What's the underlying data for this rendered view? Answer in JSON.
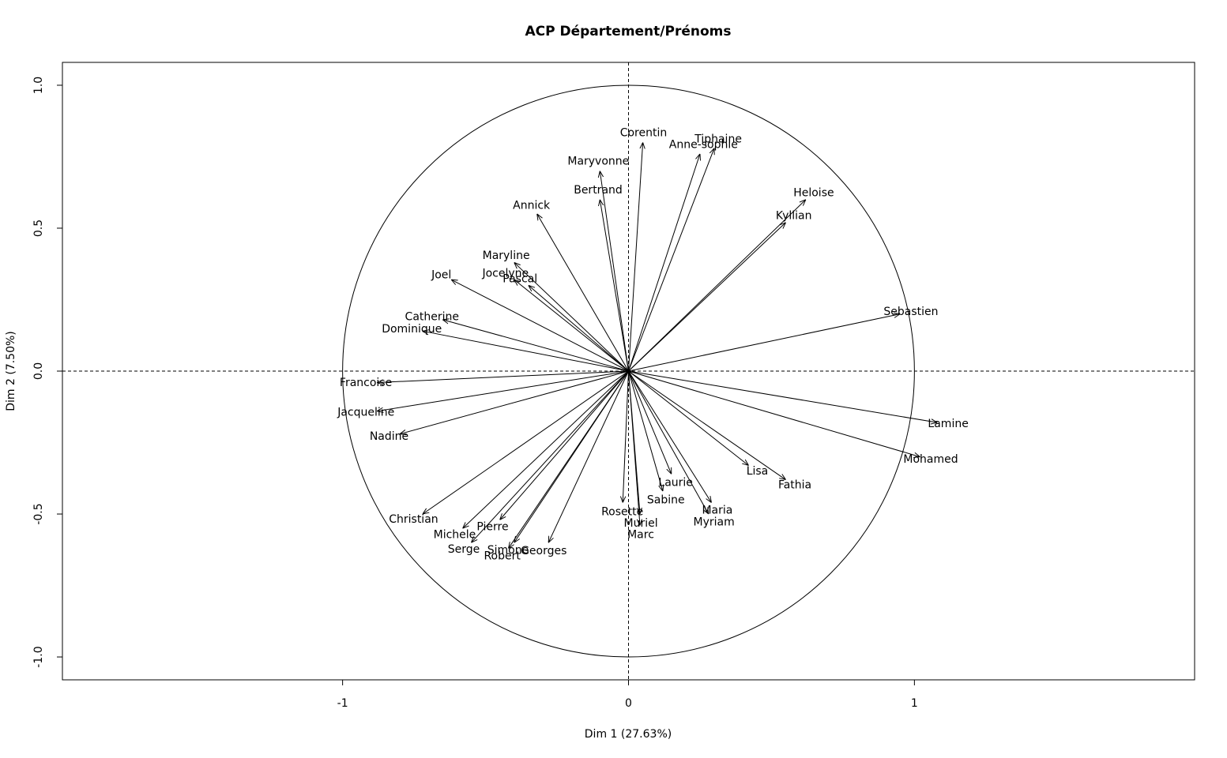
{
  "chart_data": {
    "type": "vectors",
    "title": "ACP Département/Prénoms",
    "x_label": "Dim 1 (27.63%)",
    "y_label": "Dim 2 (7.50%)",
    "xlim": [
      -1.98,
      1.98
    ],
    "ylim": [
      -1.08,
      1.08
    ],
    "xticks": [
      -1,
      0,
      1
    ],
    "yticks": [
      {
        "value": -1,
        "label": "-1.0"
      },
      {
        "value": -0.5,
        "label": "-0.5"
      },
      {
        "value": 0,
        "label": "0.0"
      },
      {
        "value": 0.5,
        "label": "0.5"
      },
      {
        "value": 1,
        "label": "1.0"
      }
    ],
    "color": "#000000",
    "names": [
      "Corentin",
      "Tiphaine",
      "Anne-sophie",
      "Maryvonne",
      "Heloise",
      "Kyllian",
      "Maryline",
      "Joel",
      "Jocelyne",
      "Pascal",
      "Annick",
      "Bertrand",
      "Dominique",
      "Catherine",
      "Francoise",
      "Jacqueline",
      "Nadine",
      "Christian",
      "Michele",
      "Serge",
      "Robert",
      "Simone",
      "Georges",
      "Pierre",
      "Muriel",
      "Marc",
      "Rosette",
      "Maria",
      "Myriam",
      "Lisa",
      "Fathia",
      "Mohamed",
      "Lamine",
      "Sebastien",
      "Laurie",
      "Sabine"
    ],
    "x": [
      0.05,
      0.3,
      0.25,
      -0.1,
      0.62,
      0.55,
      -0.4,
      -0.62,
      -0.4,
      -0.35,
      -0.32,
      -0.1,
      -0.72,
      -0.65,
      -0.88,
      -0.88,
      -0.8,
      -0.72,
      -0.58,
      -0.55,
      -0.42,
      -0.4,
      -0.28,
      -0.45,
      0.04,
      0.04,
      -0.02,
      0.29,
      0.28,
      0.42,
      0.55,
      1.02,
      1.08,
      0.95,
      0.15,
      0.12
    ],
    "y": [
      0.8,
      0.78,
      0.76,
      0.7,
      0.6,
      0.52,
      0.38,
      0.32,
      0.32,
      0.3,
      0.55,
      0.6,
      0.14,
      0.18,
      -0.04,
      -0.14,
      -0.22,
      -0.5,
      -0.55,
      -0.6,
      -0.62,
      -0.6,
      -0.6,
      -0.52,
      -0.5,
      -0.54,
      -0.46,
      -0.46,
      -0.5,
      -0.33,
      -0.38,
      -0.3,
      -0.18,
      0.2,
      -0.36,
      -0.42
    ]
  }
}
